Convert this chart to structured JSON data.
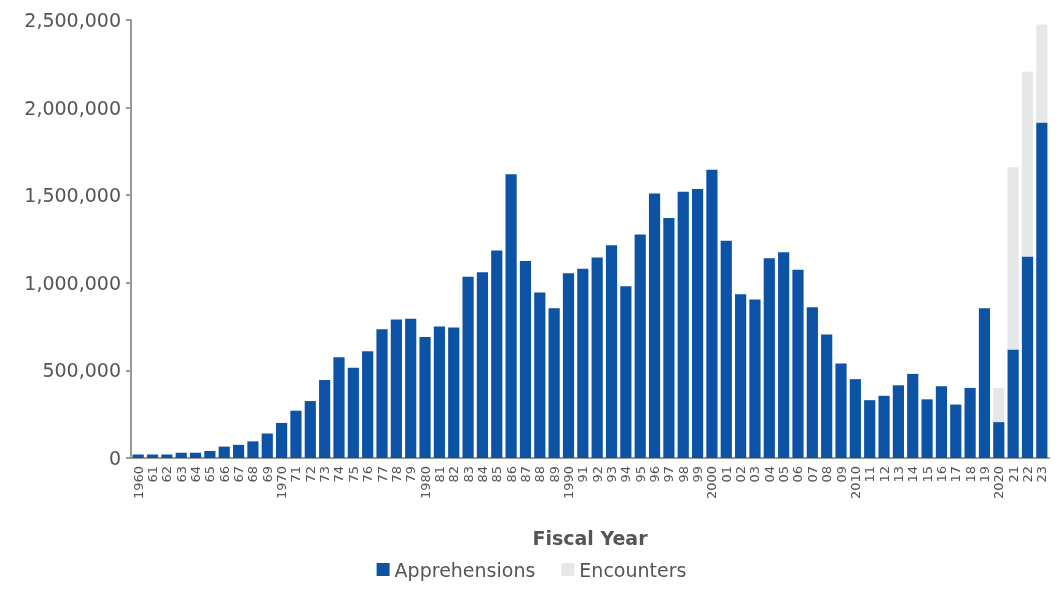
{
  "chart_data": {
    "type": "bar",
    "stacked": true,
    "xlabel": "Fiscal Year",
    "categories": [
      "1960",
      "61",
      "62",
      "63",
      "64",
      "65",
      "66",
      "67",
      "68",
      "69",
      "1970",
      "71",
      "72",
      "73",
      "74",
      "75",
      "76",
      "77",
      "78",
      "79",
      "1980",
      "81",
      "82",
      "83",
      "84",
      "85",
      "86",
      "87",
      "88",
      "89",
      "1990",
      "91",
      "92",
      "93",
      "94",
      "95",
      "96",
      "97",
      "98",
      "99",
      "2000",
      "01",
      "02",
      "03",
      "04",
      "05",
      "06",
      "07",
      "08",
      "09",
      "2010",
      "11",
      "12",
      "13",
      "14",
      "15",
      "16",
      "17",
      "18",
      "19",
      "2020",
      "21",
      "22",
      "23"
    ],
    "series": [
      {
        "name": "Apprehensions",
        "color": "#0c53a6",
        "values": [
          20000,
          20000,
          20000,
          30000,
          30000,
          40000,
          65000,
          75000,
          95000,
          140000,
          200000,
          270000,
          325000,
          445000,
          575000,
          515000,
          610000,
          735000,
          790000,
          795000,
          690000,
          750000,
          745000,
          1035000,
          1060000,
          1185000,
          1620000,
          1125000,
          945000,
          855000,
          1055000,
          1080000,
          1145000,
          1215000,
          980000,
          1275000,
          1510000,
          1370000,
          1520000,
          1535000,
          1645000,
          1240000,
          935000,
          905000,
          1140000,
          1175000,
          1075000,
          860000,
          705000,
          540000,
          450000,
          330000,
          355000,
          415000,
          480000,
          335000,
          410000,
          305000,
          400000,
          855000,
          205000,
          620000,
          1150000,
          1915000
        ]
      },
      {
        "name": "Encounters",
        "color": "#e6e7e8",
        "values": [
          null,
          null,
          null,
          null,
          null,
          null,
          null,
          null,
          null,
          null,
          null,
          null,
          null,
          null,
          null,
          null,
          null,
          null,
          null,
          null,
          null,
          null,
          null,
          null,
          null,
          null,
          null,
          null,
          null,
          null,
          null,
          null,
          null,
          null,
          null,
          null,
          null,
          null,
          null,
          null,
          null,
          null,
          null,
          null,
          null,
          null,
          null,
          null,
          null,
          null,
          null,
          null,
          null,
          null,
          null,
          null,
          null,
          null,
          null,
          null,
          195000,
          1040000,
          1055000,
          560000
        ]
      }
    ],
    "ylim": [
      0,
      2500000
    ],
    "yticks": [
      0,
      {
        "value": 500000,
        "label": "500,000"
      },
      {
        "value": 1000000,
        "label": "1,000,000"
      },
      {
        "value": 1500000,
        "label": "1,500,000"
      },
      {
        "value": 2000000,
        "label": "2,000,000"
      },
      {
        "value": 2500000,
        "label": "2,500,000"
      }
    ],
    "grid": false,
    "legend": "bottom"
  }
}
